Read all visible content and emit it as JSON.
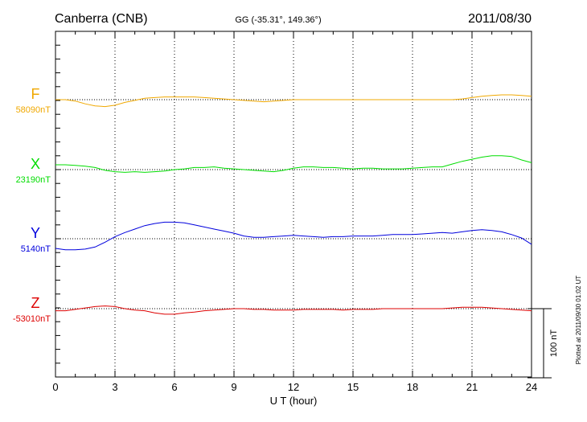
{
  "header": {
    "station": "Canberra (CNB)",
    "coords": "GG (-35.31°, 149.36°)",
    "date": "2011/08/30"
  },
  "chart_data": {
    "type": "line",
    "xlabel": "U T (hour)",
    "x_ticks": [
      "0",
      "3",
      "6",
      "9",
      "12",
      "15",
      "18",
      "21",
      "24"
    ],
    "xlim": [
      0,
      24
    ],
    "grid": true,
    "scale_bar_label": "100 nT",
    "scale_bar_nT": 100,
    "plotted_note": "Plotted at 2011/09/30 01:02 UT",
    "series": [
      {
        "name": "F",
        "baseline_label": "58090nT",
        "baseline_nT": 58090,
        "color": "#f0a800",
        "points": [
          [
            0,
            0
          ],
          [
            0.5,
            0
          ],
          [
            1,
            -2
          ],
          [
            1.5,
            -6
          ],
          [
            2,
            -9
          ],
          [
            2.5,
            -10
          ],
          [
            3,
            -8
          ],
          [
            3.5,
            -4
          ],
          [
            4,
            -1
          ],
          [
            4.5,
            2
          ],
          [
            5,
            3
          ],
          [
            5.5,
            4
          ],
          [
            6,
            4
          ],
          [
            6.5,
            4
          ],
          [
            7,
            4
          ],
          [
            7.5,
            3
          ],
          [
            8,
            2
          ],
          [
            8.5,
            1
          ],
          [
            9,
            0
          ],
          [
            9.5,
            -1
          ],
          [
            10,
            -2
          ],
          [
            10.5,
            -3
          ],
          [
            11,
            -2
          ],
          [
            11.5,
            -1
          ],
          [
            12,
            0
          ],
          [
            12.5,
            0
          ],
          [
            13,
            0
          ],
          [
            13.5,
            0
          ],
          [
            14,
            0
          ],
          [
            14.5,
            0
          ],
          [
            15,
            0
          ],
          [
            15.5,
            0
          ],
          [
            16,
            0
          ],
          [
            16.5,
            0
          ],
          [
            17,
            0
          ],
          [
            17.5,
            0
          ],
          [
            18,
            0
          ],
          [
            18.5,
            0
          ],
          [
            19,
            0
          ],
          [
            19.5,
            0
          ],
          [
            20,
            0
          ],
          [
            20.5,
            1
          ],
          [
            21,
            3
          ],
          [
            21.5,
            5
          ],
          [
            22,
            6
          ],
          [
            22.5,
            7
          ],
          [
            23,
            7
          ],
          [
            23.5,
            6
          ],
          [
            24,
            5
          ]
        ]
      },
      {
        "name": "X",
        "baseline_label": "23190nT",
        "baseline_nT": 23190,
        "color": "#00dd00",
        "points": [
          [
            0,
            7
          ],
          [
            0.5,
            7
          ],
          [
            1,
            6
          ],
          [
            1.5,
            5
          ],
          [
            2,
            3
          ],
          [
            2.5,
            -1
          ],
          [
            3,
            -3
          ],
          [
            3.5,
            -4
          ],
          [
            4,
            -3
          ],
          [
            4.5,
            -4
          ],
          [
            5,
            -3
          ],
          [
            5.5,
            -2
          ],
          [
            6,
            0
          ],
          [
            6.5,
            1
          ],
          [
            7,
            3
          ],
          [
            7.5,
            3
          ],
          [
            8,
            4
          ],
          [
            8.5,
            2
          ],
          [
            9,
            1
          ],
          [
            9.5,
            0
          ],
          [
            10,
            -1
          ],
          [
            10.5,
            -2
          ],
          [
            11,
            -3
          ],
          [
            11.5,
            -1
          ],
          [
            12,
            2
          ],
          [
            12.5,
            4
          ],
          [
            13,
            4
          ],
          [
            13.5,
            3
          ],
          [
            14,
            3
          ],
          [
            14.5,
            2
          ],
          [
            15,
            1
          ],
          [
            15.5,
            2
          ],
          [
            16,
            2
          ],
          [
            16.5,
            1
          ],
          [
            17,
            1
          ],
          [
            17.5,
            1
          ],
          [
            18,
            2
          ],
          [
            18.5,
            3
          ],
          [
            19,
            4
          ],
          [
            19.5,
            4
          ],
          [
            20,
            8
          ],
          [
            20.5,
            12
          ],
          [
            21,
            15
          ],
          [
            21.5,
            18
          ],
          [
            22,
            20
          ],
          [
            22.5,
            20
          ],
          [
            23,
            19
          ],
          [
            23.5,
            14
          ],
          [
            24,
            10
          ]
        ]
      },
      {
        "name": "Y",
        "baseline_label": "5140nT",
        "baseline_nT": 5140,
        "color": "#0000dd",
        "points": [
          [
            0,
            -14
          ],
          [
            0.5,
            -16
          ],
          [
            1,
            -16
          ],
          [
            1.5,
            -15
          ],
          [
            2,
            -12
          ],
          [
            2.5,
            -5
          ],
          [
            3,
            3
          ],
          [
            3.5,
            9
          ],
          [
            4,
            14
          ],
          [
            4.5,
            19
          ],
          [
            5,
            22
          ],
          [
            5.5,
            24
          ],
          [
            6,
            24
          ],
          [
            6.5,
            23
          ],
          [
            7,
            20
          ],
          [
            7.5,
            17
          ],
          [
            8,
            14
          ],
          [
            8.5,
            11
          ],
          [
            9,
            8
          ],
          [
            9.5,
            4
          ],
          [
            10,
            2
          ],
          [
            10.5,
            2
          ],
          [
            11,
            3
          ],
          [
            11.5,
            4
          ],
          [
            12,
            5
          ],
          [
            12.5,
            4
          ],
          [
            13,
            3
          ],
          [
            13.5,
            2
          ],
          [
            14,
            3
          ],
          [
            14.5,
            3
          ],
          [
            15,
            4
          ],
          [
            15.5,
            4
          ],
          [
            16,
            4
          ],
          [
            16.5,
            5
          ],
          [
            17,
            6
          ],
          [
            17.5,
            6
          ],
          [
            18,
            6
          ],
          [
            18.5,
            7
          ],
          [
            19,
            8
          ],
          [
            19.5,
            9
          ],
          [
            20,
            8
          ],
          [
            20.5,
            10
          ],
          [
            21,
            12
          ],
          [
            21.5,
            13
          ],
          [
            22,
            12
          ],
          [
            22.5,
            10
          ],
          [
            23,
            6
          ],
          [
            23.5,
            1
          ],
          [
            24,
            -8
          ]
        ]
      },
      {
        "name": "Z",
        "baseline_label": "-53010nT",
        "baseline_nT": -53010,
        "color": "#dd0000",
        "points": [
          [
            0,
            -3
          ],
          [
            0.5,
            -3
          ],
          [
            1,
            -1
          ],
          [
            1.5,
            1
          ],
          [
            2,
            3
          ],
          [
            2.5,
            4
          ],
          [
            3,
            3
          ],
          [
            3.5,
            0
          ],
          [
            4,
            -2
          ],
          [
            4.5,
            -3
          ],
          [
            5,
            -6
          ],
          [
            5.5,
            -8
          ],
          [
            6,
            -8
          ],
          [
            6.5,
            -6
          ],
          [
            7,
            -5
          ],
          [
            7.5,
            -3
          ],
          [
            8,
            -2
          ],
          [
            8.5,
            -1
          ],
          [
            9,
            0
          ],
          [
            9.5,
            0
          ],
          [
            10,
            -1
          ],
          [
            10.5,
            -1
          ],
          [
            11,
            -2
          ],
          [
            11.5,
            -2
          ],
          [
            12,
            -2
          ],
          [
            12.5,
            -1
          ],
          [
            13,
            -1
          ],
          [
            13.5,
            -1
          ],
          [
            14,
            -1
          ],
          [
            14.5,
            -2
          ],
          [
            15,
            -1
          ],
          [
            15.5,
            -1
          ],
          [
            16,
            -1
          ],
          [
            16.5,
            0
          ],
          [
            17,
            0
          ],
          [
            17.5,
            0
          ],
          [
            18,
            0
          ],
          [
            18.5,
            0
          ],
          [
            19,
            0
          ],
          [
            19.5,
            0
          ],
          [
            20,
            1
          ],
          [
            20.5,
            2
          ],
          [
            21,
            2
          ],
          [
            21.5,
            2
          ],
          [
            22,
            1
          ],
          [
            22.5,
            0
          ],
          [
            23,
            -1
          ],
          [
            23.5,
            -2
          ],
          [
            24,
            -3
          ]
        ]
      }
    ]
  }
}
